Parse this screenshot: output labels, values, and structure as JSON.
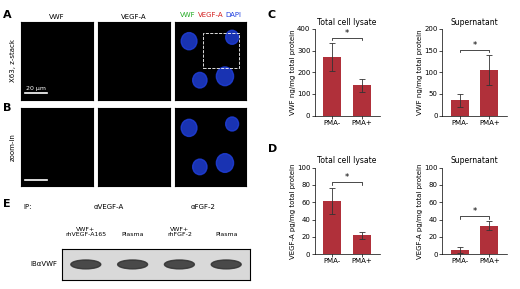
{
  "panel_labels": [
    "A",
    "B",
    "C",
    "D",
    "E"
  ],
  "images": {
    "rows": [
      {
        "label": "X63, z-stack",
        "scale_bar": "20 µm"
      },
      {
        "label": "zoom-in"
      }
    ],
    "channels": [
      "VWF",
      "VEGF-A"
    ],
    "merge": [
      {
        "name": "VWF",
        "color": "#22aa22"
      },
      {
        "name": "VEGF-A",
        "color": "#d42020"
      },
      {
        "name": "DAPI",
        "color": "#2040e0"
      }
    ]
  },
  "blot": {
    "ip_label": "IP:",
    "groups": [
      {
        "antibody": "αVEGF-A",
        "lanes": [
          [
            "VWF+",
            "rhVEGF-A165"
          ],
          [
            "Plasma"
          ]
        ]
      },
      {
        "antibody": "αFGF-2",
        "lanes": [
          [
            "VWF+",
            "rhFGF-2"
          ],
          [
            "Plasma"
          ]
        ]
      }
    ],
    "row_label": "IBαVWF"
  },
  "chart_data": [
    {
      "type": "bar",
      "title": "Total cell lysate",
      "y_label": "VWF ng/mg total protein",
      "categories": [
        "PMA-",
        "PMA+"
      ],
      "values": [
        270,
        140
      ],
      "errors": [
        65,
        30
      ],
      "color": "#b0303a",
      "ylim": [
        0,
        400
      ],
      "yticks": [
        0,
        100,
        200,
        300,
        400
      ],
      "annotations": [
        "*"
      ]
    },
    {
      "type": "bar",
      "title": "Supernatant",
      "y_label": "VWF ng/mg total protein",
      "categories": [
        "PMA-",
        "PMA+"
      ],
      "values": [
        35,
        105
      ],
      "errors": [
        15,
        35
      ],
      "color": "#b0303a",
      "ylim": [
        0,
        200
      ],
      "yticks": [
        0,
        50,
        100,
        150,
        200
      ],
      "annotations": [
        "*"
      ]
    },
    {
      "type": "bar",
      "title": "Total cell lysate",
      "y_label": "VEGF-A pg/mg total protein",
      "categories": [
        "PMA-",
        "PMA+"
      ],
      "values": [
        62,
        22
      ],
      "errors": [
        15,
        4
      ],
      "color": "#b0303a",
      "ylim": [
        0,
        100
      ],
      "yticks": [
        0,
        20,
        40,
        60,
        80,
        100
      ],
      "annotations": [
        "*"
      ]
    },
    {
      "type": "bar",
      "title": "Supernatant",
      "y_label": "VEGF-A pg/mg total protein",
      "categories": [
        "PMA-",
        "PMA+"
      ],
      "values": [
        5,
        33
      ],
      "errors": [
        3,
        5
      ],
      "color": "#b0303a",
      "ylim": [
        0,
        100
      ],
      "yticks": [
        0,
        20,
        40,
        60,
        80,
        100
      ],
      "annotations": [
        "*"
      ]
    }
  ]
}
